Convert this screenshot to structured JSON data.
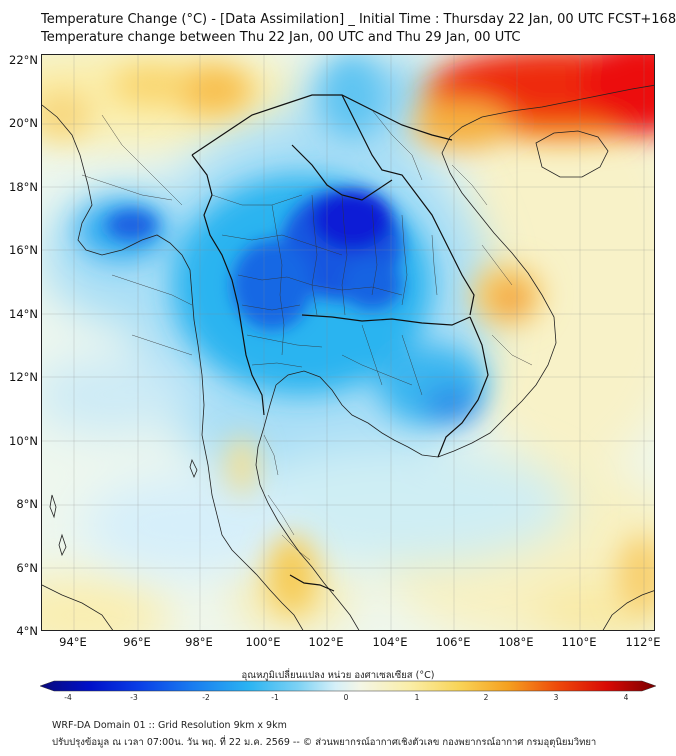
{
  "header": {
    "title_line1": "Temperature Change (°C) - [Data Assimilation] _ Initial Time : Thursday 22 Jan, 00 UTC FCST+168",
    "title_line2": "Temperature change between Thu 22 Jan, 00 UTC and Thu 29 Jan, 00 UTC"
  },
  "map": {
    "lat_labels": [
      "22°N",
      "20°N",
      "18°N",
      "16°N",
      "14°N",
      "12°N",
      "10°N",
      "8°N",
      "6°N",
      "4°N"
    ],
    "lon_labels": [
      "94°E",
      "96°E",
      "98°E",
      "100°E",
      "102°E",
      "104°E",
      "106°E",
      "108°E",
      "110°E",
      "112°E"
    ],
    "layers": [
      "temperature-change-field",
      "country-boundaries",
      "province-boundaries",
      "coastlines",
      "graticule"
    ],
    "colors": {
      "strong_cooling": "#0818d8",
      "cooling": "#1aa8f0",
      "slight_cooling": "#bde8f8",
      "neutral": "#f4f8e6",
      "slight_warming": "#fbeea8",
      "warming": "#f5a020",
      "strong_warming": "#ec0a05"
    }
  },
  "colorbar": {
    "label": "อุณหภูมิเปลี่ยนแปลง หน่วย องศาเซลเซียส (°C)",
    "ticks": [
      "-4",
      "-3",
      "-2",
      "-1",
      "0",
      "1",
      "2",
      "3",
      "4"
    ]
  },
  "footer": {
    "line1": "WRF-DA Domain 01 :: Grid Resolution 9km x 9km",
    "line2": "ปรับปรุงข้อมูล ณ เวลา 07:00น. วัน พฤ. ที่ 22 ม.ค. 2569 -- © ส่วนพยากรณ์อากาศเชิงตัวเลข กองพยากรณ์อากาศ กรมอุตุนิยมวิทยา"
  }
}
